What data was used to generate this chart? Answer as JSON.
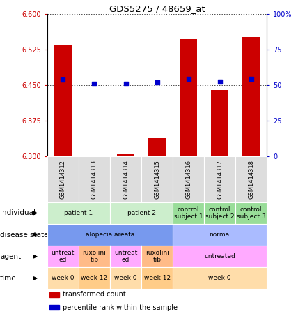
{
  "title": "GDS5275 / 48659_at",
  "samples": [
    "GSM1414312",
    "GSM1414313",
    "GSM1414314",
    "GSM1414315",
    "GSM1414316",
    "GSM1414317",
    "GSM1414318"
  ],
  "bar_values": [
    6.535,
    6.302,
    6.305,
    6.338,
    6.548,
    6.44,
    6.552
  ],
  "bar_base": 6.3,
  "blue_values": [
    6.462,
    6.453,
    6.454,
    6.457,
    6.463,
    6.458,
    6.463
  ],
  "ylim_left": [
    6.3,
    6.6
  ],
  "ylim_right": [
    0,
    100
  ],
  "yticks_left": [
    6.3,
    6.375,
    6.45,
    6.525,
    6.6
  ],
  "yticks_right": [
    0,
    25,
    50,
    75,
    100
  ],
  "bar_color": "#cc0000",
  "blue_color": "#0000cc",
  "metadata_rows": [
    {
      "label": "individual",
      "cells": [
        {
          "text": "patient 1",
          "span": 2,
          "color": "#cceecc"
        },
        {
          "text": "patient 2",
          "span": 2,
          "color": "#cceecc"
        },
        {
          "text": "control\nsubject 1",
          "span": 1,
          "color": "#99dd99"
        },
        {
          "text": "control\nsubject 2",
          "span": 1,
          "color": "#99dd99"
        },
        {
          "text": "control\nsubject 3",
          "span": 1,
          "color": "#99dd99"
        }
      ]
    },
    {
      "label": "disease state",
      "cells": [
        {
          "text": "alopecia areata",
          "span": 4,
          "color": "#7799ee"
        },
        {
          "text": "normal",
          "span": 3,
          "color": "#aabbff"
        }
      ]
    },
    {
      "label": "agent",
      "cells": [
        {
          "text": "untreat\ned",
          "span": 1,
          "color": "#ffaaff"
        },
        {
          "text": "ruxolini\ntib",
          "span": 1,
          "color": "#ffbb88"
        },
        {
          "text": "untreat\ned",
          "span": 1,
          "color": "#ffaaff"
        },
        {
          "text": "ruxolini\ntib",
          "span": 1,
          "color": "#ffbb88"
        },
        {
          "text": "untreated",
          "span": 3,
          "color": "#ffaaff"
        }
      ]
    },
    {
      "label": "time",
      "cells": [
        {
          "text": "week 0",
          "span": 1,
          "color": "#ffddaa"
        },
        {
          "text": "week 12",
          "span": 1,
          "color": "#ffcc88"
        },
        {
          "text": "week 0",
          "span": 1,
          "color": "#ffddaa"
        },
        {
          "text": "week 12",
          "span": 1,
          "color": "#ffcc88"
        },
        {
          "text": "week 0",
          "span": 3,
          "color": "#ffddaa"
        }
      ]
    }
  ],
  "legend": [
    {
      "color": "#cc0000",
      "label": "transformed count"
    },
    {
      "color": "#0000cc",
      "label": "percentile rank within the sample"
    }
  ]
}
